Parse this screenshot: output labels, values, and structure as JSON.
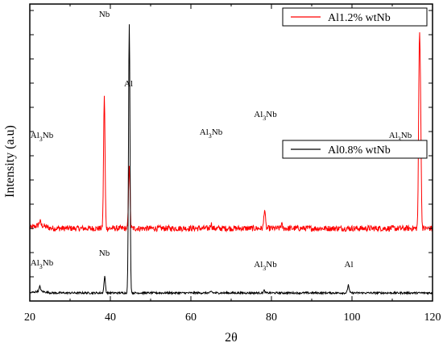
{
  "chart_data": {
    "type": "line",
    "xlabel": "2θ",
    "ylabel": "Intensity (a.u)",
    "xlim": [
      20,
      120
    ],
    "x_ticks": [
      "20",
      "40",
      "60",
      "80",
      "100",
      "120"
    ],
    "legend_placement": "top-right (per panel)",
    "grid": false,
    "y_units": "arbitrary, stacked traces",
    "series": [
      {
        "name": "Al1.2% wtNb",
        "color": "#ff0000",
        "baseline": 45,
        "peaks": [
          {
            "x": 22.5,
            "height": 2.5
          },
          {
            "x": 38.5,
            "height": 82
          },
          {
            "x": 44.7,
            "height": 40
          },
          {
            "x": 65.0,
            "height": 3
          },
          {
            "x": 78.3,
            "height": 12
          },
          {
            "x": 82.5,
            "height": 2.5
          },
          {
            "x": 116.7,
            "height": 97
          },
          {
            "x": 117.0,
            "height": 70
          }
        ],
        "annotations": [
          {
            "sub": "Al",
            "idx": "3",
            "rest": "Nb",
            "x": 23,
            "y": 56
          },
          {
            "sub": "",
            "idx": "",
            "rest": "Nb",
            "x": 38.5,
            "y": 131
          },
          {
            "sub": "",
            "idx": "",
            "rest": "Al",
            "x": 44.5,
            "y": 88
          },
          {
            "sub": "Al",
            "idx": "3",
            "rest": "Nb",
            "x": 65,
            "y": 58
          },
          {
            "sub": "Al",
            "idx": "3",
            "rest": "Nb",
            "x": 78.5,
            "y": 69
          },
          {
            "sub": "Al",
            "idx": "3",
            "rest": "Nb",
            "x": 112,
            "y": 56
          },
          {
            "sub": "Al",
            "idx": "3",
            "rest": "Nb",
            "x": 116.5,
            "y": 171
          }
        ]
      },
      {
        "name": "Al0.8% wtNb",
        "color": "#000000",
        "baseline": 5,
        "peaks": [
          {
            "x": 22.5,
            "height": 3
          },
          {
            "x": 38.6,
            "height": 10
          },
          {
            "x": 44.7,
            "height": 167
          },
          {
            "x": 65.1,
            "height": 1
          },
          {
            "x": 78.2,
            "height": 1.5
          },
          {
            "x": 99.1,
            "height": 5
          }
        ],
        "annotations": [
          {
            "sub": "Al",
            "idx": "3",
            "rest": "Nb",
            "x": 23,
            "y": 17
          },
          {
            "sub": "",
            "idx": "",
            "rest": "Nb",
            "x": 38.5,
            "y": 23
          },
          {
            "sub": "",
            "idx": "",
            "rest": "Al",
            "x": 44.7,
            "y": 182
          },
          {
            "sub": "Al",
            "idx": "3",
            "rest": "Nb",
            "x": 78.5,
            "y": 16
          },
          {
            "sub": "",
            "idx": "",
            "rest": "Al",
            "x": 99.2,
            "y": 16
          }
        ]
      }
    ]
  }
}
